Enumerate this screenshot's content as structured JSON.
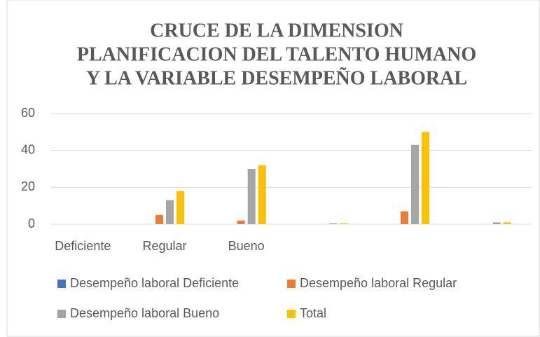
{
  "chart_data": {
    "type": "bar",
    "title": [
      "CRUCE DE LA DIMENSION",
      "PLANIFICACION DEL TALENTO HUMANO",
      "Y LA VARIABLE DESEMPEÑO LABORAL"
    ],
    "categories": [
      "Deficiente",
      "Regular",
      "Bueno",
      null,
      null,
      null
    ],
    "series": [
      {
        "name": "Desempeño laboral Deficiente",
        "color": "#4472c4",
        "values": [
          0,
          0,
          0,
          0,
          0,
          0
        ]
      },
      {
        "name": "Desempeño laboral Regular",
        "color": "#ed7d31",
        "values": [
          0,
          5,
          2,
          0,
          7,
          0
        ]
      },
      {
        "name": "Desempeño laboral Bueno",
        "color": "#a5a5a5",
        "values": [
          0,
          13,
          30,
          0.5,
          43,
          1
        ]
      },
      {
        "name": "Total",
        "color": "#ffc000",
        "values": [
          0,
          18,
          32,
          0.5,
          50,
          1
        ]
      }
    ],
    "ylim": [
      0,
      60
    ],
    "yticks": [
      0,
      20,
      40,
      60
    ],
    "grid": true
  }
}
